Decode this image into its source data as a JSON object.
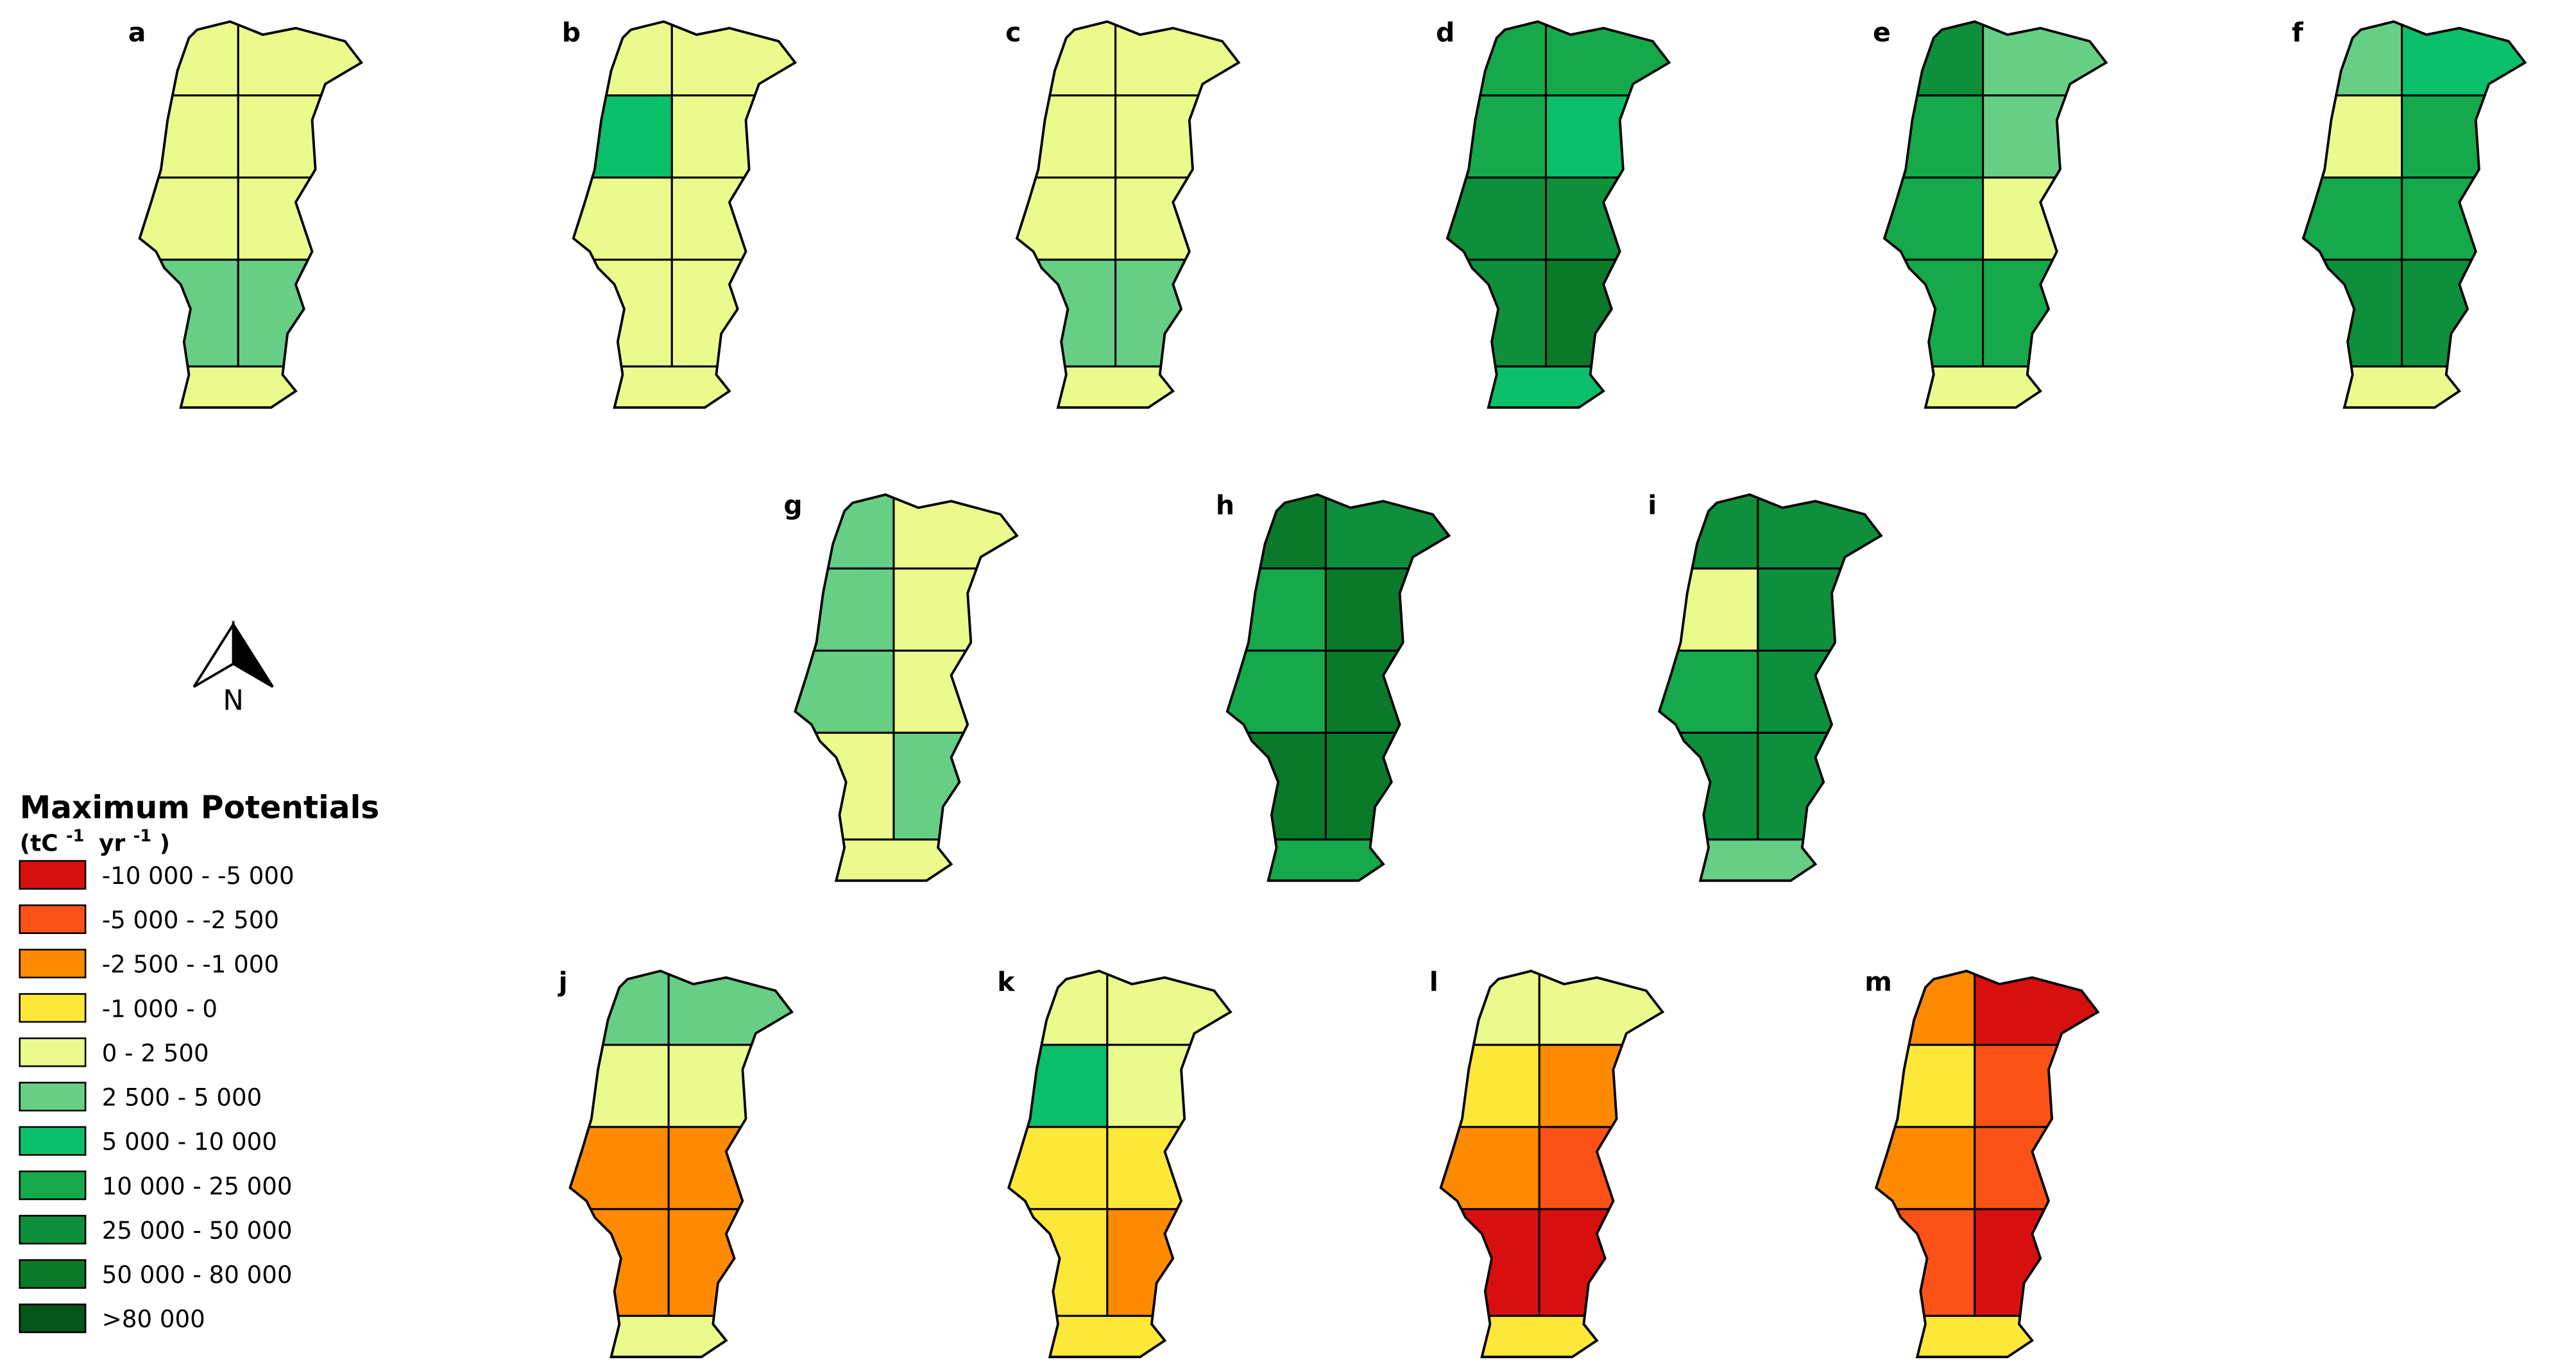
{
  "panels": [
    {
      "label": "a",
      "fills": [
        "#ebfa8c",
        "#ebfa8c",
        "#ebfa8c",
        "#ebfa8c",
        "#ebfa8c",
        "#ebfa8c",
        "#66cf85",
        "#66cf85",
        "#ebfa8c"
      ]
    },
    {
      "label": "b",
      "fills": [
        "#ebfa8c",
        "#ebfa8c",
        "#0cbf6a",
        "#ebfa8c",
        "#ebfa8c",
        "#ebfa8c",
        "#ebfa8c",
        "#ebfa8c",
        "#ebfa8c"
      ]
    },
    {
      "label": "c",
      "fills": [
        "#ebfa8c",
        "#ebfa8c",
        "#ebfa8c",
        "#ebfa8c",
        "#ebfa8c",
        "#ebfa8c",
        "#66cf85",
        "#66cf85",
        "#ebfa8c"
      ]
    },
    {
      "label": "d",
      "fills": [
        "#15a94b",
        "#15a94b",
        "#15a94b",
        "#0cbf6a",
        "#0e8f3c",
        "#0e8f3c",
        "#0e8f3c",
        "#0a7a2a",
        "#0cbf6a"
      ]
    },
    {
      "label": "e",
      "fills": [
        "#0e8f3c",
        "#66cf85",
        "#15a94b",
        "#66cf85",
        "#15a94b",
        "#ebfa8c",
        "#15a94b",
        "#15a94b",
        "#ebfa8c"
      ]
    },
    {
      "label": "f",
      "fills": [
        "#66cf85",
        "#0cbf6a",
        "#ebfa8c",
        "#15a94b",
        "#15a94b",
        "#15a94b",
        "#0e8f3c",
        "#0e8f3c",
        "#ebfa8c"
      ]
    },
    {
      "label": "g",
      "fills": [
        "#66cf85",
        "#ebfa8c",
        "#66cf85",
        "#ebfa8c",
        "#66cf85",
        "#ebfa8c",
        "#ebfa8c",
        "#66cf85",
        "#ebfa8c"
      ]
    },
    {
      "label": "h",
      "fills": [
        "#0a7a2a",
        "#0e8f3c",
        "#15a94b",
        "#0a7a2a",
        "#15a94b",
        "#0a7a2a",
        "#0a7a2a",
        "#0a7a2a",
        "#15a94b"
      ]
    },
    {
      "label": "i",
      "fills": [
        "#0e8f3c",
        "#0e8f3c",
        "#ebfa8c",
        "#0e8f3c",
        "#15a94b",
        "#0e8f3c",
        "#0e8f3c",
        "#0e8f3c",
        "#66cf85"
      ]
    },
    {
      "label": "j",
      "fills": [
        "#66cf85",
        "#66cf85",
        "#ebfa8c",
        "#ebfa8c",
        "#fd8a00",
        "#fd8a00",
        "#fd8a00",
        "#fd8a00",
        "#ebfa8c"
      ]
    },
    {
      "label": "k",
      "fills": [
        "#ebfa8c",
        "#ebfa8c",
        "#0cbf6a",
        "#ebfa8c",
        "#fde83a",
        "#fde83a",
        "#fde83a",
        "#fd8a00",
        "#fde83a"
      ]
    },
    {
      "label": "l",
      "fills": [
        "#ebfa8c",
        "#ebfa8c",
        "#fde83a",
        "#fd8a00",
        "#fd8a00",
        "#fc5117",
        "#d7100f",
        "#d7100f",
        "#fde83a"
      ]
    },
    {
      "label": "m",
      "fills": [
        "#fd8a00",
        "#d7100f",
        "#fde83a",
        "#fc5117",
        "#fd8a00",
        "#fc5117",
        "#fc5117",
        "#d7100f",
        "#fde83a"
      ]
    }
  ],
  "north": "N",
  "legend": {
    "title": "Maximum Potentials",
    "unit": [
      "(tC",
      "-1",
      "yr",
      "-1",
      ")"
    ],
    "items": [
      {
        "label": "-10 000 - -5 000",
        "color": "#d7100f"
      },
      {
        "label": "-5 000 -  -2 500",
        "color": "#fc5117"
      },
      {
        "label": "-2 500 - -1 000",
        "color": "#fd8a00"
      },
      {
        "label": "-1 000 - 0",
        "color": "#fde83a"
      },
      {
        "label": "0 - 2 500",
        "color": "#ebfa8c"
      },
      {
        "label": "2 500 - 5 000",
        "color": "#66cf85"
      },
      {
        "label": "5 000 - 10 000",
        "color": "#0cbf6a"
      },
      {
        "label": "10 000 - 25 000",
        "color": "#15a94b"
      },
      {
        "label": "25 000 - 50 000",
        "color": "#0e8f3c"
      },
      {
        "label": "50 000 - 80 000",
        "color": "#0a7a2a"
      },
      {
        "label": ">80 000",
        "color": "#05541a"
      }
    ]
  }
}
